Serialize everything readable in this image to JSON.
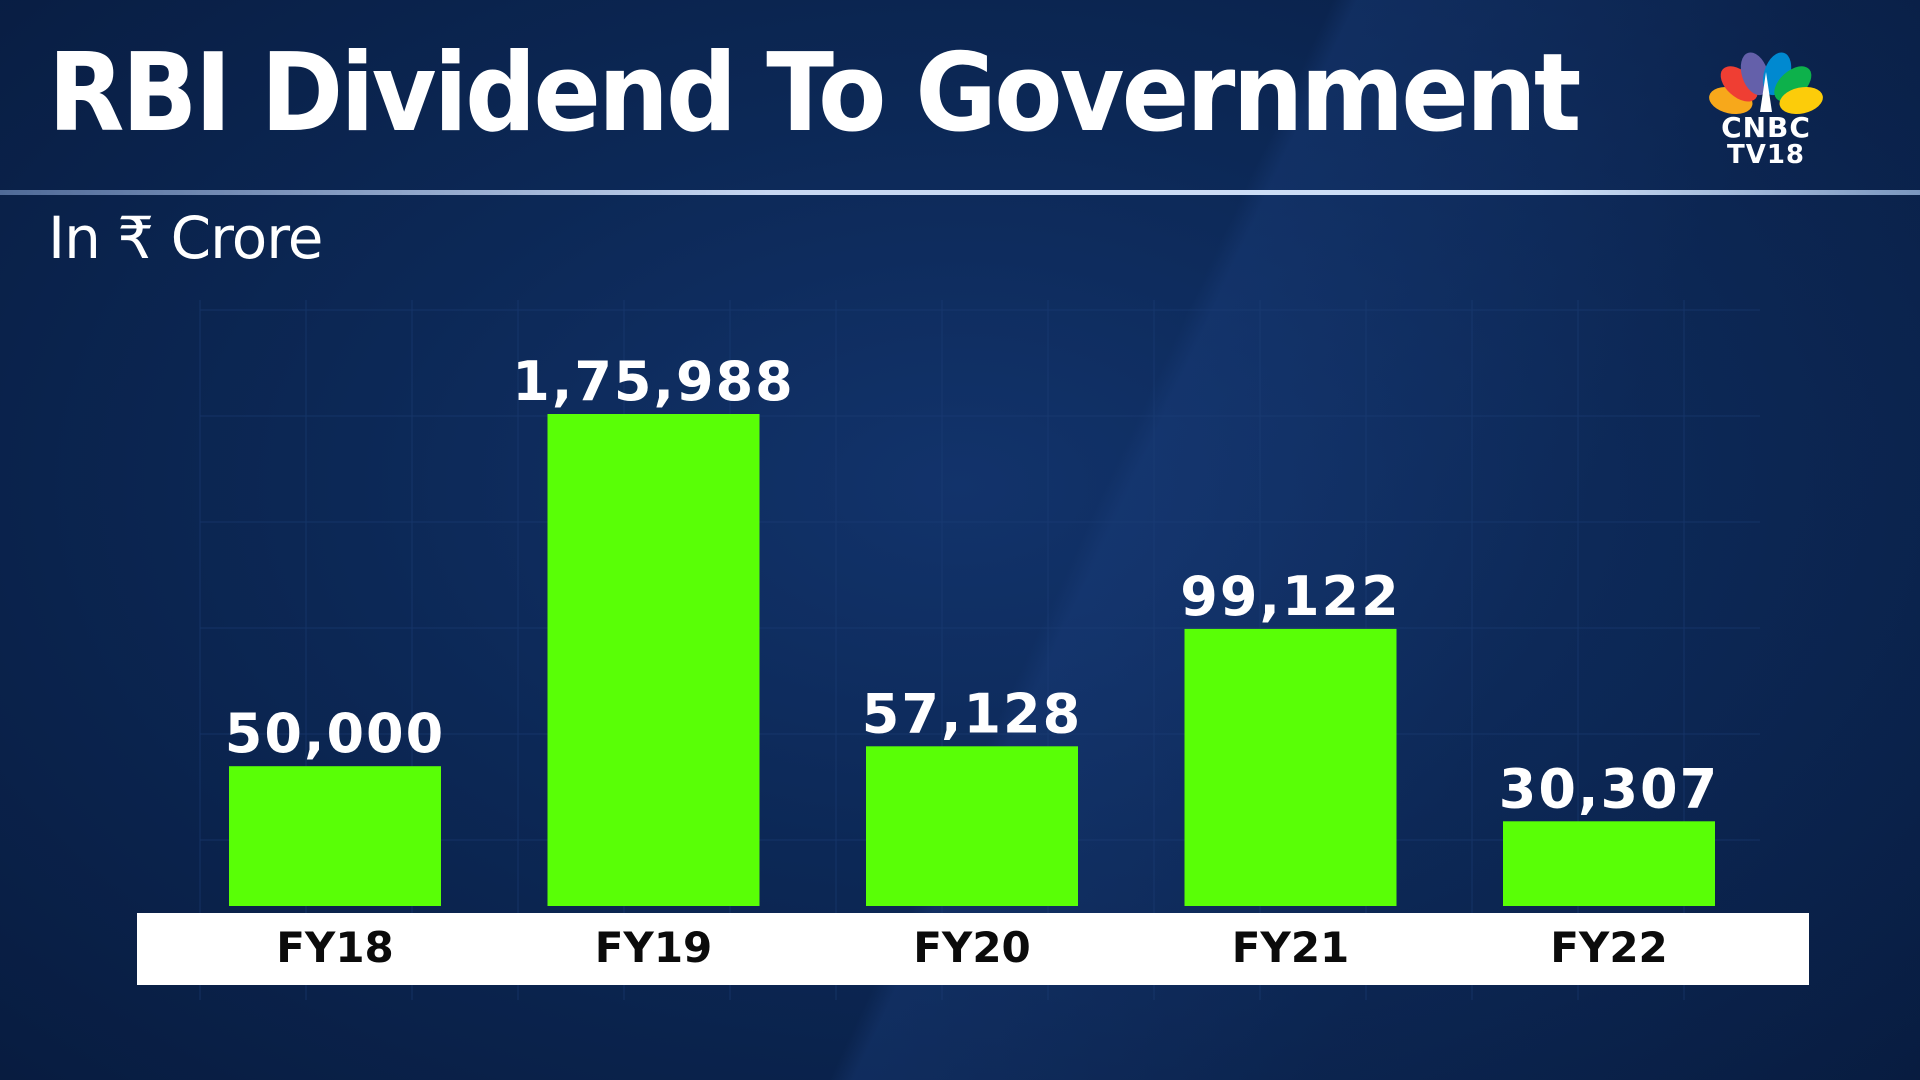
{
  "header": {
    "title": "RBI Dividend To Government",
    "subtitle": "In ₹ Crore"
  },
  "logo": {
    "line1": "CNBC",
    "line2": "TV18",
    "peacock_colors": [
      "#f7a81b",
      "#ef3e33",
      "#6460aa",
      "#0089d0",
      "#0db14b",
      "#fccc0a"
    ]
  },
  "colors": {
    "bar": "#59ff06",
    "background": "#0c2856",
    "axis_band": "#ffffff",
    "value_label": "#ffffff",
    "category_label": "#0b0b0b"
  },
  "chart_data": {
    "type": "bar",
    "title": "RBI Dividend To Government",
    "subtitle": "In ₹ Crore",
    "categories": [
      "FY18",
      "FY19",
      "FY20",
      "FY21",
      "FY22"
    ],
    "values": [
      50000,
      175988,
      57128,
      99122,
      30307
    ],
    "value_labels": [
      "50,000",
      "1,75,988",
      "57,128",
      "99,122",
      "30,307"
    ],
    "xlabel": "",
    "ylabel": "",
    "ylim": [
      0,
      175988
    ],
    "grid": true,
    "legend": "none"
  }
}
